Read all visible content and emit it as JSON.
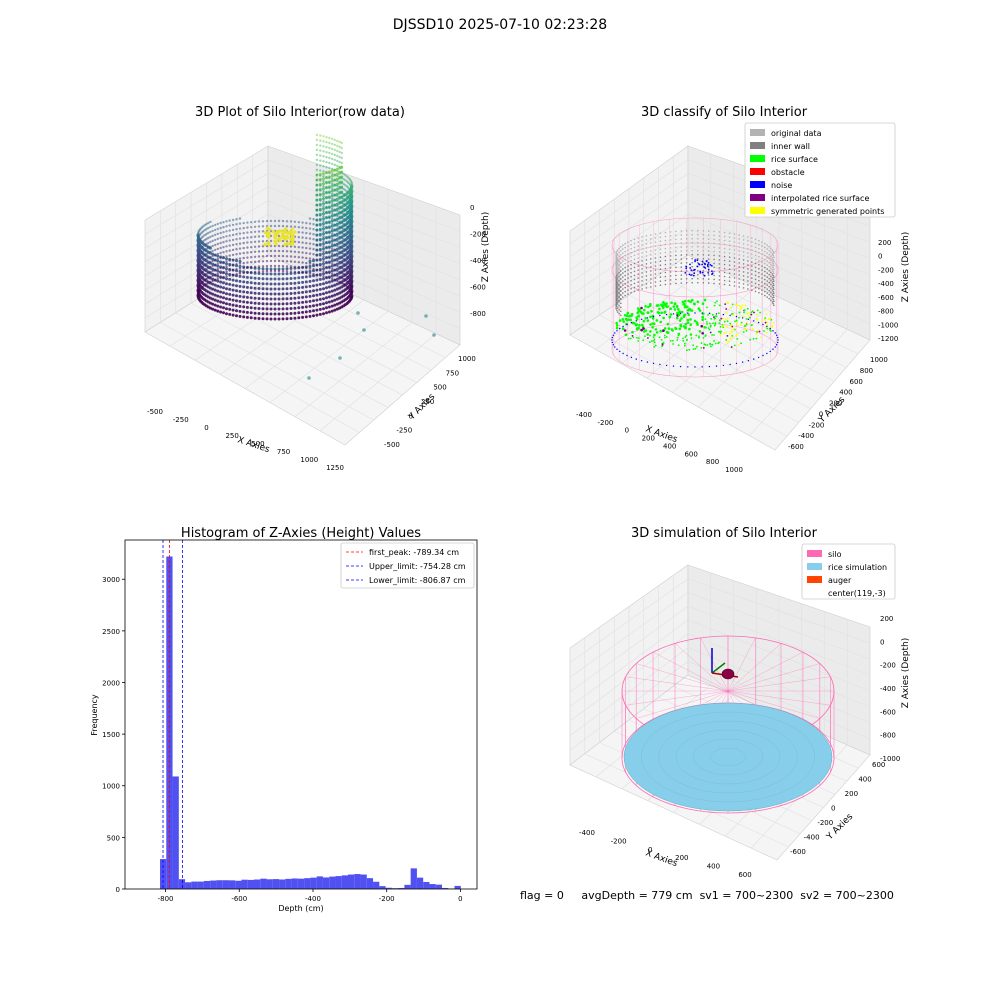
{
  "suptitle": "DJSSD10 2025-07-10 02:23:28",
  "footer": {
    "flag": "flag = 0",
    "avg_depth": "avgDepth = 779 cm",
    "sv1": "sv1 = 700~2300",
    "sv2": "sv2 = 700~2300"
  },
  "colors": {
    "histogram_bar": "#4848f0",
    "first_peak_line": "#ff0000",
    "limit_lines": "#0000ff",
    "original_data": "#b3b3b3",
    "inner_wall": "#808080",
    "rice_surface": "#00ff00",
    "obstacle": "#ff0000",
    "noise": "#0000ff",
    "interpolated_rice_surface": "#800080",
    "symmetric_generated_points": "#ffff00",
    "silo": "#ff69b4",
    "rice_simulation": "#87ceeb",
    "auger": "#ff4500"
  },
  "chart_data": [
    {
      "type": "scatter",
      "projection": "3d",
      "title": "3D Plot of Silo Interior(row data)",
      "xlabel": "X Axies",
      "ylabel": "Y Axies",
      "zlabel": "Z Axies (Depth)",
      "x_ticks": [
        "-500",
        "-250",
        "0",
        "250",
        "500",
        "750",
        "1000",
        "1250"
      ],
      "y_ticks": [
        "-500",
        "-250",
        "0",
        "250",
        "500",
        "750",
        "1000"
      ],
      "z_ticks": [
        "0",
        "-200",
        "-400",
        "-600",
        "-800"
      ],
      "colormap": "viridis",
      "grid": true
    },
    {
      "type": "scatter",
      "projection": "3d",
      "title": "3D classify of Silo Interior",
      "xlabel": "X Axies",
      "ylabel": "Y Axies",
      "zlabel": "Z Axies (Depth)",
      "x_ticks": [
        "-400",
        "-200",
        "0",
        "200",
        "400",
        "600",
        "800",
        "1000"
      ],
      "y_ticks": [
        "-600",
        "-400",
        "-200",
        "0",
        "200",
        "400",
        "600",
        "800",
        "1000"
      ],
      "z_ticks": [
        "200",
        "0",
        "-200",
        "-400",
        "-600",
        "-800",
        "-1000",
        "-1200"
      ],
      "legend_position": "top-right",
      "legend": [
        {
          "label": "original data",
          "color": "#b3b3b3"
        },
        {
          "label": "inner wall",
          "color": "#808080"
        },
        {
          "label": "rice surface",
          "color": "#00ff00"
        },
        {
          "label": "obstacle",
          "color": "#ff0000"
        },
        {
          "label": "noise",
          "color": "#0000ff"
        },
        {
          "label": "interpolated rice surface",
          "color": "#800080"
        },
        {
          "label": "symmetric generated points",
          "color": "#ffff00"
        }
      ],
      "grid": true
    },
    {
      "type": "bar",
      "title": "Histogram of Z-Axies (Height) Values",
      "xlabel": "Depth (cm)",
      "ylabel": "Frequency",
      "xlim": [
        -910,
        45
      ],
      "ylim": [
        0,
        3380
      ],
      "x_ticks": [
        -800,
        -600,
        -400,
        -200,
        0
      ],
      "y_ticks": [
        0,
        500,
        1000,
        1500,
        2000,
        2500,
        3000
      ],
      "bin_width": 17,
      "bins": [
        {
          "x": -815,
          "count": 290
        },
        {
          "x": -798,
          "count": 3220
        },
        {
          "x": -781,
          "count": 1090
        },
        {
          "x": -764,
          "count": 95
        },
        {
          "x": -747,
          "count": 65
        },
        {
          "x": -730,
          "count": 72
        },
        {
          "x": -713,
          "count": 72
        },
        {
          "x": -696,
          "count": 78
        },
        {
          "x": -679,
          "count": 82
        },
        {
          "x": -662,
          "count": 85
        },
        {
          "x": -645,
          "count": 85
        },
        {
          "x": -628,
          "count": 84
        },
        {
          "x": -611,
          "count": 80
        },
        {
          "x": -594,
          "count": 90
        },
        {
          "x": -577,
          "count": 88
        },
        {
          "x": -560,
          "count": 92
        },
        {
          "x": -543,
          "count": 100
        },
        {
          "x": -526,
          "count": 94
        },
        {
          "x": -509,
          "count": 96
        },
        {
          "x": -492,
          "count": 92
        },
        {
          "x": -475,
          "count": 98
        },
        {
          "x": -458,
          "count": 102
        },
        {
          "x": -441,
          "count": 100
        },
        {
          "x": -424,
          "count": 105
        },
        {
          "x": -407,
          "count": 110
        },
        {
          "x": -390,
          "count": 122
        },
        {
          "x": -373,
          "count": 112
        },
        {
          "x": -356,
          "count": 120
        },
        {
          "x": -339,
          "count": 125
        },
        {
          "x": -322,
          "count": 132
        },
        {
          "x": -305,
          "count": 140
        },
        {
          "x": -288,
          "count": 145
        },
        {
          "x": -271,
          "count": 140
        },
        {
          "x": -254,
          "count": 105
        },
        {
          "x": -237,
          "count": 70
        },
        {
          "x": -220,
          "count": 28
        },
        {
          "x": -203,
          "count": 12
        },
        {
          "x": -186,
          "count": 8
        },
        {
          "x": -169,
          "count": 10
        },
        {
          "x": -152,
          "count": 40
        },
        {
          "x": -135,
          "count": 200
        },
        {
          "x": -118,
          "count": 110
        },
        {
          "x": -101,
          "count": 68
        },
        {
          "x": -84,
          "count": 48
        },
        {
          "x": -67,
          "count": 42
        },
        {
          "x": -50,
          "count": 10
        },
        {
          "x": -33,
          "count": 5
        },
        {
          "x": -16,
          "count": 30
        }
      ],
      "vlines": [
        {
          "label": "first_peak: -789.34 cm",
          "x": -789.34,
          "color": "#ff0000"
        },
        {
          "label": "Upper_limit: -754.28 cm",
          "x": -754.28,
          "color": "#0000ff"
        },
        {
          "label": "Lower_limit: -806.87 cm",
          "x": -806.87,
          "color": "#0000ff"
        }
      ],
      "legend_position": "top-right",
      "grid": false
    },
    {
      "type": "surface",
      "projection": "3d",
      "title": "3D simulation of Silo Interior",
      "xlabel": "X Axies",
      "ylabel": "Y Axies",
      "zlabel": "Z Axies (Depth)",
      "x_ticks": [
        "-400",
        "-200",
        "0",
        "200",
        "400",
        "600"
      ],
      "y_ticks": [
        "-600",
        "-400",
        "-200",
        "0",
        "200",
        "400",
        "600"
      ],
      "z_ticks": [
        "200",
        "0",
        "-200",
        "-400",
        "-600",
        "-800",
        "-1000"
      ],
      "legend_position": "top-right",
      "legend": [
        {
          "label": "silo",
          "color": "#ff69b4"
        },
        {
          "label": "rice simulation",
          "color": "#87ceeb"
        },
        {
          "label": "auger",
          "color": "#ff4500"
        },
        {
          "label": "center(119,-3)",
          "color": ""
        }
      ],
      "grid": true
    }
  ]
}
